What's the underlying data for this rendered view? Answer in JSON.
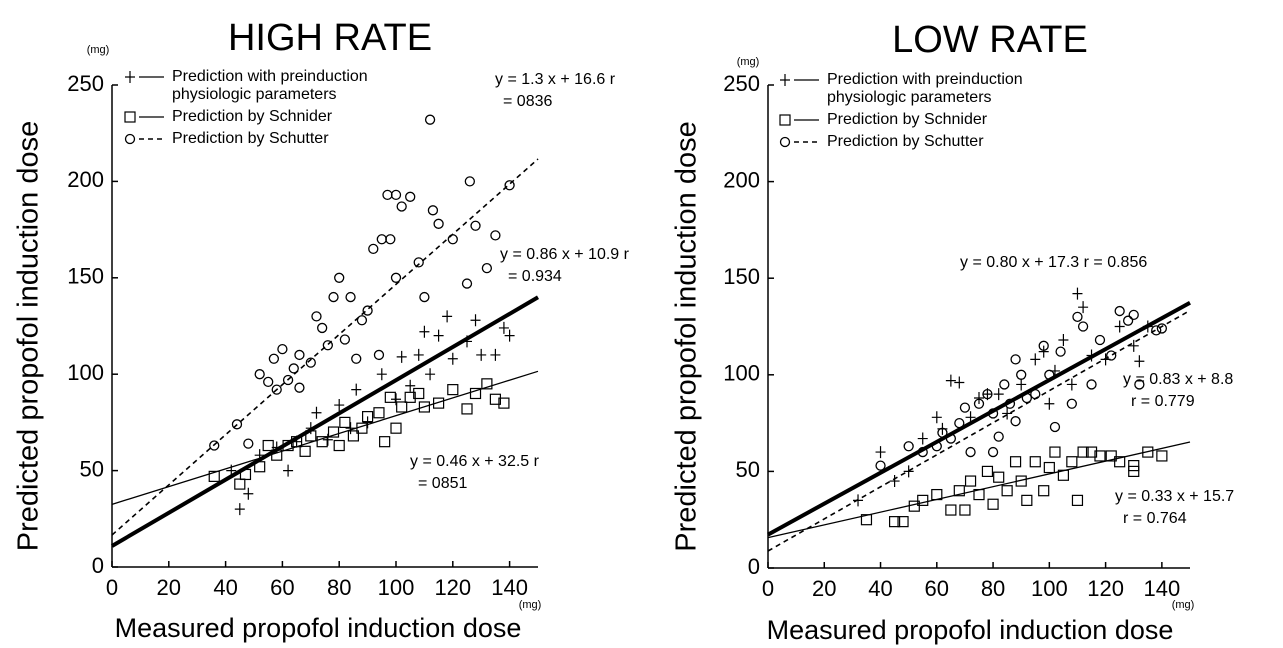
{
  "chart_data": [
    {
      "type": "scatter",
      "title": "HIGH RATE",
      "x_label": "Measured propofol induction dose",
      "y_label": "Predicted propofol induction dose",
      "x_unit": "(mg)",
      "y_unit": "(mg)",
      "xlim": [
        0,
        150
      ],
      "ylim": [
        0,
        250
      ],
      "xticks": [
        0,
        20,
        40,
        60,
        80,
        100,
        120,
        140
      ],
      "yticks": [
        0,
        50,
        100,
        150,
        200,
        250
      ],
      "series": [
        {
          "name": "Prediction with preinduction physiologic parameters",
          "marker": "plus",
          "line_style": "thick",
          "color": "#000000",
          "fit": {
            "slope": 0.86,
            "intercept": 10.9
          },
          "x": [
            42,
            45,
            48,
            52,
            58,
            62,
            65,
            70,
            72,
            76,
            80,
            84,
            86,
            90,
            95,
            100,
            102,
            105,
            108,
            110,
            112,
            115,
            120,
            125,
            128,
            130,
            135,
            138,
            140,
            118
          ],
          "values": [
            50,
            30,
            38,
            58,
            62,
            50,
            65,
            72,
            80,
            66,
            84,
            72,
            92,
            75,
            100,
            87,
            109,
            94,
            110,
            122,
            100,
            120,
            108,
            117,
            128,
            110,
            110,
            124,
            120,
            130
          ]
        },
        {
          "name": "Prediction by Schnider",
          "marker": "square",
          "line_style": "solid",
          "color": "#000000",
          "fit": {
            "slope": 0.46,
            "intercept": 32.5
          },
          "x": [
            36,
            45,
            47,
            52,
            55,
            58,
            62,
            65,
            68,
            70,
            74,
            78,
            80,
            82,
            85,
            88,
            90,
            94,
            96,
            98,
            100,
            102,
            105,
            108,
            110,
            115,
            120,
            125,
            128,
            132,
            135,
            138
          ],
          "values": [
            47,
            43,
            48,
            52,
            63,
            58,
            63,
            65,
            60,
            68,
            65,
            70,
            63,
            75,
            68,
            72,
            78,
            80,
            65,
            88,
            72,
            83,
            88,
            90,
            83,
            85,
            92,
            82,
            90,
            95,
            87,
            85
          ]
        },
        {
          "name": "Prediction by Schutter",
          "marker": "circle",
          "line_style": "dashed",
          "color": "#000000",
          "fit": {
            "slope": 1.3,
            "intercept": 16.6
          },
          "x": [
            36,
            44,
            48,
            52,
            55,
            57,
            58,
            60,
            62,
            64,
            66,
            70,
            72,
            74,
            76,
            78,
            80,
            82,
            84,
            86,
            88,
            90,
            92,
            95,
            97,
            98,
            100,
            102,
            105,
            108,
            110,
            112,
            113,
            115,
            120,
            125,
            126,
            128,
            132,
            135,
            140,
            100,
            94,
            66
          ],
          "values": [
            63,
            74,
            64,
            100,
            96,
            108,
            92,
            113,
            97,
            103,
            110,
            106,
            130,
            124,
            115,
            140,
            150,
            118,
            140,
            108,
            128,
            133,
            165,
            170,
            193,
            170,
            193,
            187,
            192,
            158,
            140,
            232,
            185,
            178,
            170,
            147,
            200,
            177,
            155,
            172,
            198,
            150,
            110,
            93
          ]
        }
      ],
      "annotations": [
        [
          "y = 1.3 x + 16.6  r",
          "= 0836"
        ],
        [
          "y = 0.86 x + 10.9  r",
          "= 0.934"
        ],
        [
          "y = 0.46 x + 32.5  r",
          "= 0851"
        ]
      ]
    },
    {
      "type": "scatter",
      "title": "LOW RATE",
      "x_label": "Measured propofol induction dose",
      "y_label": "Predicted propofol induction dose",
      "x_unit": "(mg)",
      "y_unit": "(mg)",
      "xlim": [
        0,
        150
      ],
      "ylim": [
        0,
        250
      ],
      "xticks": [
        0,
        20,
        40,
        60,
        80,
        100,
        120,
        140
      ],
      "yticks": [
        0,
        50,
        100,
        150,
        200,
        250
      ],
      "series": [
        {
          "name": "Prediction with preinduction physiologic parameters",
          "marker": "plus",
          "line_style": "thick",
          "color": "#000000",
          "fit": {
            "slope": 0.8,
            "intercept": 17.3
          },
          "x": [
            32,
            40,
            45,
            50,
            55,
            60,
            62,
            65,
            68,
            72,
            75,
            78,
            82,
            85,
            90,
            95,
            98,
            100,
            102,
            105,
            108,
            110,
            112,
            115,
            120,
            125,
            130,
            132,
            135
          ],
          "values": [
            35,
            60,
            45,
            50,
            67,
            78,
            72,
            97,
            96,
            78,
            88,
            90,
            90,
            80,
            95,
            108,
            112,
            85,
            102,
            118,
            95,
            142,
            135,
            110,
            108,
            125,
            115,
            107,
            125
          ]
        },
        {
          "name": "Prediction by Schnider",
          "marker": "square",
          "line_style": "solid",
          "color": "#000000",
          "fit": {
            "slope": 0.33,
            "intercept": 15.7
          },
          "x": [
            35,
            45,
            48,
            52,
            55,
            60,
            65,
            68,
            70,
            72,
            75,
            78,
            80,
            82,
            85,
            88,
            90,
            92,
            95,
            98,
            100,
            102,
            105,
            108,
            110,
            112,
            115,
            118,
            122,
            125,
            130,
            130,
            135,
            140
          ],
          "values": [
            25,
            24,
            24,
            32,
            35,
            38,
            30,
            40,
            30,
            45,
            38,
            50,
            33,
            47,
            40,
            55,
            45,
            35,
            55,
            40,
            52,
            60,
            48,
            55,
            35,
            60,
            60,
            58,
            58,
            55,
            50,
            53,
            60,
            58
          ]
        },
        {
          "name": "Prediction by Schutter",
          "marker": "circle",
          "line_style": "dashed",
          "color": "#000000",
          "fit": {
            "slope": 0.83,
            "intercept": 8.8
          },
          "x": [
            40,
            50,
            55,
            60,
            62,
            65,
            68,
            70,
            72,
            75,
            78,
            80,
            82,
            84,
            86,
            88,
            90,
            92,
            95,
            98,
            100,
            102,
            104,
            108,
            110,
            112,
            115,
            118,
            122,
            125,
            128,
            130,
            132,
            138,
            140,
            80,
            88
          ],
          "values": [
            53,
            63,
            60,
            63,
            70,
            67,
            75,
            83,
            60,
            85,
            90,
            80,
            68,
            95,
            85,
            108,
            100,
            88,
            90,
            115,
            100,
            73,
            112,
            85,
            130,
            125,
            95,
            118,
            110,
            133,
            128,
            131,
            95,
            123,
            124,
            60,
            76
          ]
        }
      ],
      "annotations": [
        [
          "y = 0.80 x + 17.3    r = 0.856"
        ],
        [
          "y = 0.83 x + 8.8",
          "r = 0.779"
        ],
        [
          "y = 0.33 x + 15.7",
          "r = 0.764"
        ]
      ]
    }
  ]
}
